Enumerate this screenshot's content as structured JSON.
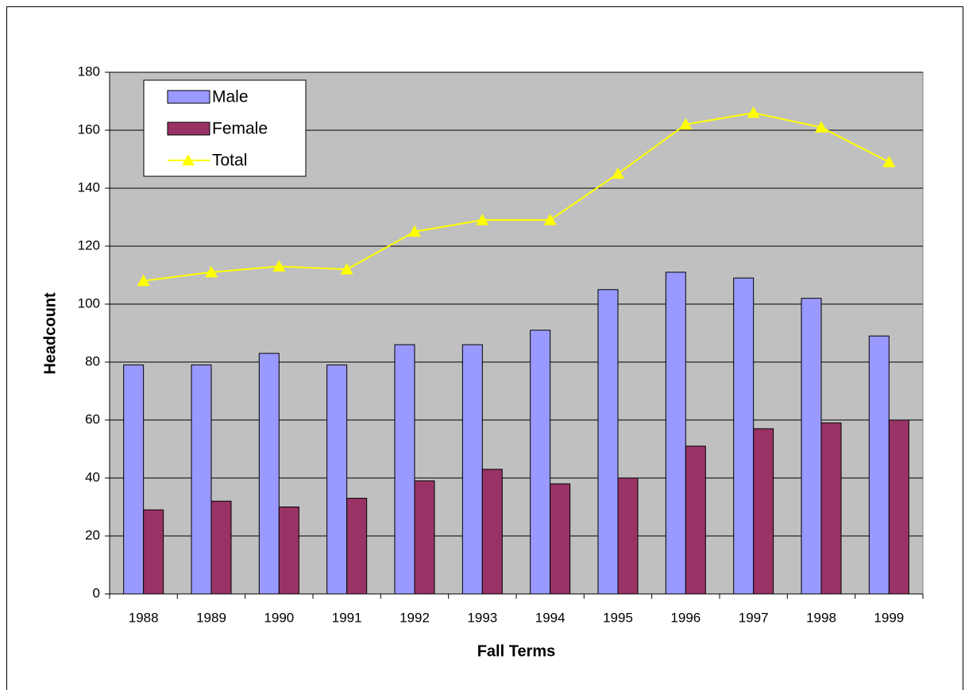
{
  "chart_data": {
    "type": "bar",
    "x_label": "Fall Terms",
    "y_label": "Headcount",
    "categories": [
      "1988",
      "1989",
      "1990",
      "1991",
      "1992",
      "1993",
      "1994",
      "1995",
      "1996",
      "1997",
      "1998",
      "1999"
    ],
    "series": [
      {
        "name": "Male",
        "color": "#9999ff",
        "values": [
          79,
          79,
          83,
          79,
          86,
          86,
          91,
          105,
          111,
          109,
          102,
          89
        ]
      },
      {
        "name": "Female",
        "color": "#993366",
        "values": [
          29,
          32,
          30,
          33,
          39,
          43,
          38,
          40,
          51,
          57,
          59,
          60
        ]
      },
      {
        "name": "Total",
        "color": "#ffff00",
        "type": "line",
        "values": [
          108,
          111,
          113,
          112,
          125,
          129,
          129,
          145,
          162,
          166,
          161,
          149
        ]
      }
    ],
    "ylim": [
      0,
      180
    ],
    "yticks": [
      0,
      20,
      40,
      60,
      80,
      100,
      120,
      140,
      160,
      180
    ],
    "grid": true,
    "plot_background": "#c0c0c0",
    "legend": "upper left"
  }
}
